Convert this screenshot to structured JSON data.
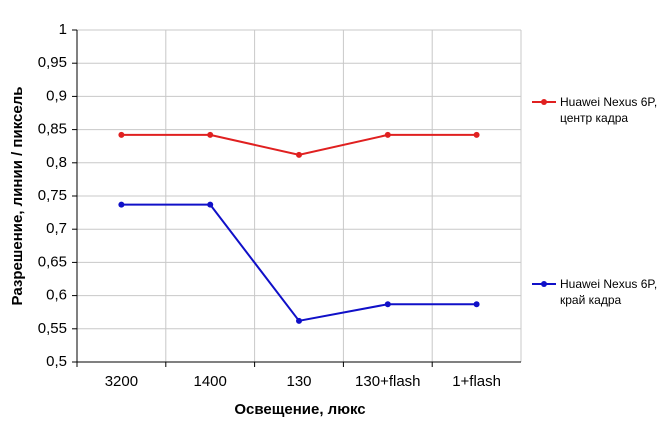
{
  "chart_data": {
    "type": "line",
    "x_label": "Освещение, люкс",
    "y_label": "Разрешение, линии / пиксель",
    "categories": [
      "3200",
      "1400",
      "130",
      "130+flash",
      "1+flash"
    ],
    "series": [
      {
        "name": "Huawei Nexus 6P, центр кадра",
        "color": "#e02020",
        "values": [
          0.842,
          0.842,
          0.812,
          0.842,
          0.842
        ]
      },
      {
        "name": "Huawei Nexus 6P, край кадра",
        "color": "#1010c8",
        "values": [
          0.737,
          0.737,
          0.562,
          0.587,
          0.587
        ]
      }
    ],
    "ylim": [
      0.5,
      1
    ],
    "yticks": [
      {
        "value": 0.5,
        "label": "0,5"
      },
      {
        "value": 0.55,
        "label": "0,55"
      },
      {
        "value": 0.6,
        "label": "0,6"
      },
      {
        "value": 0.65,
        "label": "0,65"
      },
      {
        "value": 0.7,
        "label": "0,7"
      },
      {
        "value": 0.75,
        "label": "0,75"
      },
      {
        "value": 0.8,
        "label": "0,8"
      },
      {
        "value": 0.85,
        "label": "0,85"
      },
      {
        "value": 0.9,
        "label": "0,9"
      },
      {
        "value": 0.95,
        "label": "0,95"
      },
      1
    ],
    "grid": true
  }
}
